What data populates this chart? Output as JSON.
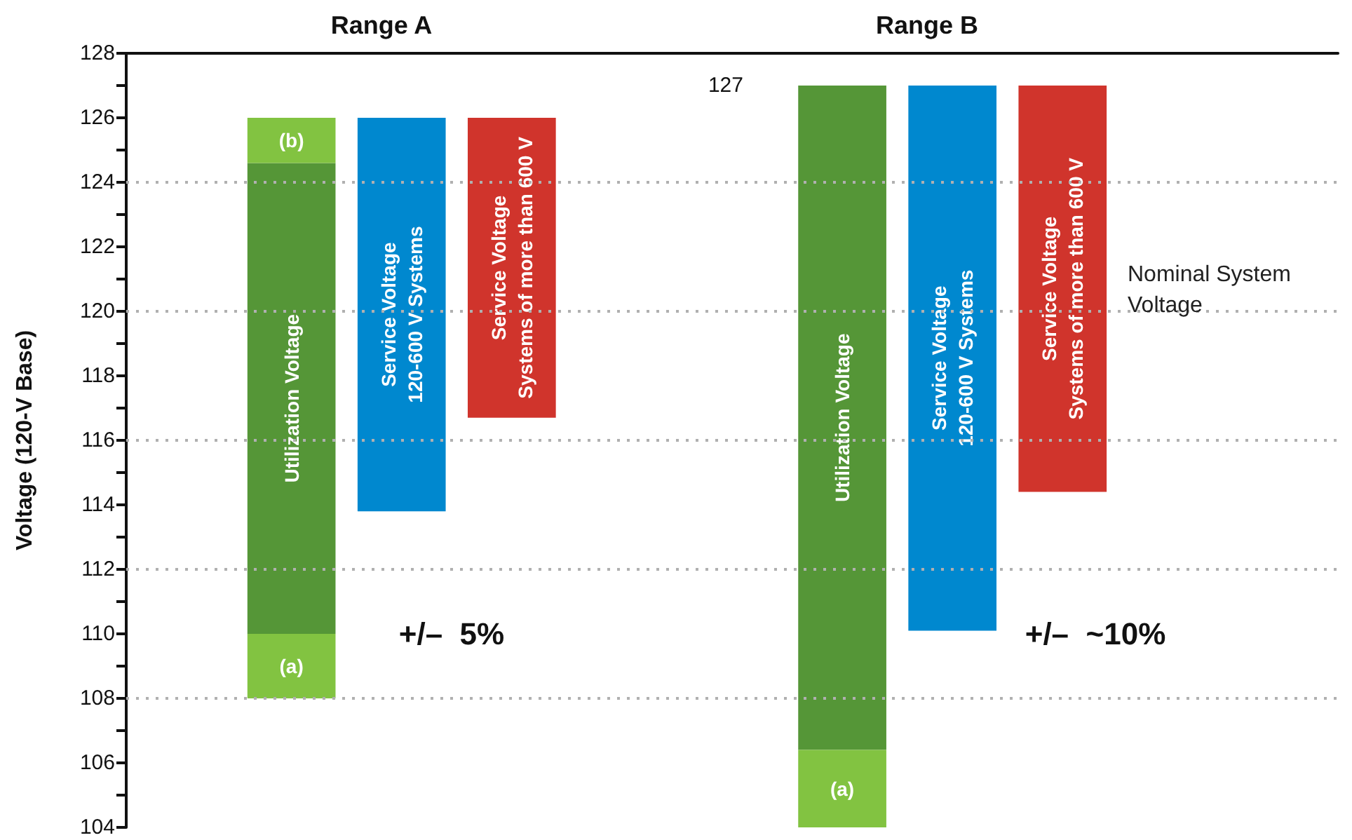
{
  "chart_data": {
    "type": "bar",
    "ylabel": "Voltage (120-V Base)",
    "categories": [
      null,
      null,
      null,
      null,
      null,
      null,
      null,
      null,
      null,
      null,
      null
    ],
    "series": [
      {
        "name": "Utilization Voltage",
        "color": "#559637",
        "base": [
          null,
          110,
          null,
          null,
          null,
          null,
          null,
          null,
          null,
          null,
          null
        ],
        "values": [
          null,
          14.6,
          null,
          null,
          null,
          null,
          null,
          null,
          null,
          null,
          null
        ]
      },
      {
        "name": "(a)",
        "color": "#82c341",
        "base": [
          null,
          108,
          null,
          null,
          null,
          null,
          null,
          null,
          null,
          null,
          null
        ],
        "values": [
          null,
          2,
          null,
          null,
          null,
          null,
          null,
          null,
          null,
          null,
          null
        ]
      },
      {
        "name": "(b)",
        "color": "#82c341",
        "base": [
          null,
          124.6,
          null,
          null,
          null,
          null,
          null,
          null,
          null,
          null,
          null
        ],
        "values": [
          null,
          1.4,
          null,
          null,
          null,
          null,
          null,
          null,
          null,
          null,
          null
        ]
      },
      {
        "name": "Service Voltage\n120-600 V Systems",
        "color": "#0088cf",
        "base": [
          null,
          null,
          113.8,
          null,
          null,
          null,
          null,
          null,
          null,
          null,
          null
        ],
        "values": [
          null,
          null,
          12.2,
          null,
          null,
          null,
          null,
          null,
          null,
          null,
          null
        ]
      },
      {
        "name": "Service Voltage\nSystems of more than 600 V",
        "color": "#d0342c",
        "base": [
          null,
          null,
          null,
          116.7,
          null,
          null,
          null,
          null,
          null,
          null,
          null
        ],
        "values": [
          null,
          null,
          null,
          9.3,
          null,
          null,
          null,
          null,
          null,
          null,
          null
        ]
      },
      {
        "name": "Utilization Voltage",
        "color": "#559637",
        "base": [
          null,
          null,
          null,
          null,
          null,
          null,
          106.4,
          null,
          null,
          null,
          null
        ],
        "values": [
          null,
          null,
          null,
          null,
          null,
          null,
          20.6,
          null,
          null,
          null,
          null
        ]
      },
      {
        "name": "(a)",
        "color": "#82c341",
        "base": [
          null,
          null,
          null,
          null,
          null,
          null,
          104,
          null,
          null,
          null,
          null
        ],
        "values": [
          null,
          null,
          null,
          null,
          null,
          null,
          2.4,
          null,
          null,
          null,
          null
        ]
      },
      {
        "name": "Service Voltage\n120-600 V Systems",
        "color": "#0088cf",
        "base": [
          null,
          null,
          null,
          null,
          null,
          null,
          null,
          110.1,
          null,
          null,
          null
        ],
        "values": [
          null,
          null,
          null,
          null,
          null,
          null,
          null,
          16.9,
          null,
          null,
          null
        ]
      },
      {
        "name": "Service Voltage\nSystems of more than 600 V",
        "color": "#d0342c",
        "base": [
          null,
          null,
          null,
          null,
          null,
          null,
          null,
          null,
          114.4,
          null,
          null
        ],
        "values": [
          null,
          null,
          null,
          null,
          null,
          null,
          null,
          null,
          12.6,
          null,
          null
        ]
      }
    ],
    "ylim": [
      104,
      128
    ],
    "yticks": [
      104,
      {
        "value": 105,
        "label": null
      },
      106,
      {
        "value": 107,
        "label": null
      },
      108,
      {
        "value": 109,
        "label": null
      },
      110,
      {
        "value": 111,
        "label": null
      },
      112,
      {
        "value": 113,
        "label": null
      },
      114,
      {
        "value": 115,
        "label": null
      },
      116,
      {
        "value": 117,
        "label": null
      },
      118,
      {
        "value": 119,
        "label": null
      },
      120,
      {
        "value": 121,
        "label": null
      },
      122,
      {
        "value": 123,
        "label": null
      },
      124,
      {
        "value": 125,
        "label": null
      },
      126,
      {
        "value": 127,
        "label": null
      },
      128
    ],
    "tick_labels": "y",
    "ref_lines": [
      {
        "axis": "y",
        "value": 108,
        "label": null,
        "line_style": "dotted",
        "color": "#b0b0b0"
      },
      {
        "axis": "y",
        "value": 112,
        "label": null,
        "line_style": "dotted",
        "color": "#b0b0b0"
      },
      {
        "axis": "y",
        "value": 116,
        "label": null,
        "line_style": "dotted",
        "color": "#b0b0b0"
      },
      {
        "axis": "y",
        "value": 120,
        "label": "Nominal System Voltage",
        "line_style": "dotted",
        "color": "#b0b0b0"
      },
      {
        "axis": "y",
        "value": 124,
        "label": null,
        "line_style": "dotted",
        "color": "#b0b0b0"
      }
    ],
    "annotations": [
      "Range A",
      "Range B",
      "+/–  5%",
      "+/–  ~10%",
      "127"
    ]
  }
}
